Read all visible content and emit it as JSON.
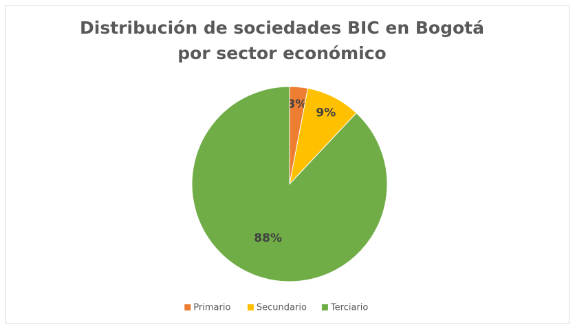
{
  "chart_data": {
    "type": "pie",
    "title": "Distribución de sociedades BIC en Bogotá por sector económico",
    "categories": [
      "Primario",
      "Secundario",
      "Terciario"
    ],
    "values": [
      3,
      9,
      88
    ],
    "value_labels": [
      "3%",
      "9%",
      "88%"
    ],
    "colors": [
      "#ed7d31",
      "#ffc000",
      "#70ad47"
    ],
    "legend": "bottom"
  }
}
